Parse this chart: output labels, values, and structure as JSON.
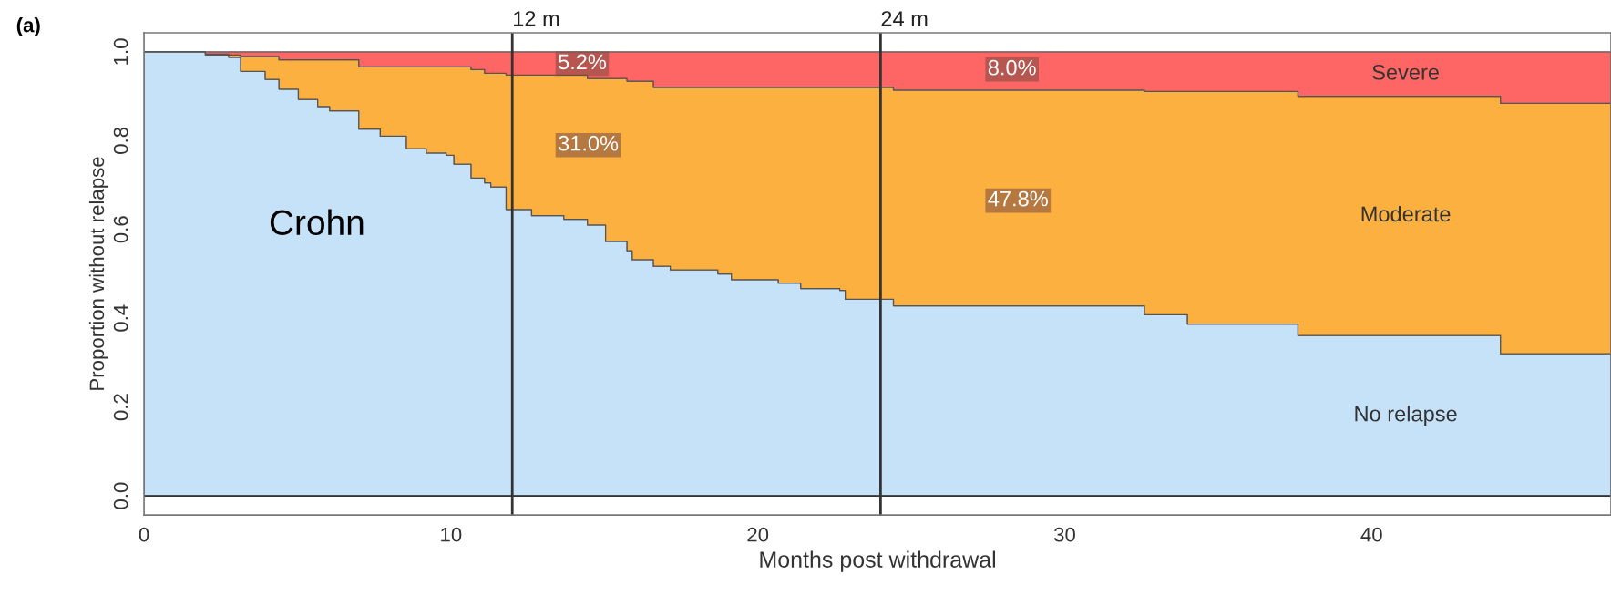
{
  "chart_data": {
    "type": "area",
    "stacked": true,
    "line_style": "solid",
    "xlabel": "Months post withdrawal",
    "ylabel": "Proportion without relapse",
    "x": [
      0,
      2.0,
      2.76,
      3.15,
      3.95,
      4.4,
      5.03,
      5.66,
      6.05,
      7.0,
      7.7,
      8.55,
      9.2,
      9.85,
      10.1,
      10.66,
      11.1,
      11.3,
      11.8,
      12.63,
      13.68,
      14.45,
      15.04,
      15.74,
      15.91,
      16.6,
      17.15,
      18.7,
      19.14,
      20.67,
      21.4,
      22.67,
      22.85,
      24.42,
      32.6,
      34.0,
      37.6,
      44.2,
      47.8
    ],
    "series": [
      {
        "name": "No relapse",
        "color": "#c6e2f8",
        "values": [
          1.0,
          0.993,
          0.988,
          0.956,
          0.938,
          0.916,
          0.893,
          0.877,
          0.867,
          0.826,
          0.81,
          0.782,
          0.772,
          0.767,
          0.747,
          0.716,
          0.705,
          0.696,
          0.645,
          0.631,
          0.623,
          0.61,
          0.573,
          0.552,
          0.532,
          0.517,
          0.509,
          0.5,
          0.487,
          0.479,
          0.467,
          0.463,
          0.443,
          0.428,
          0.408,
          0.387,
          0.361,
          0.32,
          0.32
        ]
      },
      {
        "name": "Moderate",
        "color": "#fbb040",
        "values": [
          0,
          0.002,
          0.005,
          0.034,
          0.052,
          0.066,
          0.089,
          0.105,
          0.115,
          0.14,
          0.156,
          0.184,
          0.194,
          0.199,
          0.219,
          0.244,
          0.247,
          0.256,
          0.303,
          0.317,
          0.325,
          0.33,
          0.367,
          0.382,
          0.402,
          0.403,
          0.411,
          0.42,
          0.433,
          0.441,
          0.453,
          0.457,
          0.477,
          0.486,
          0.503,
          0.524,
          0.539,
          0.564,
          0.564
        ]
      },
      {
        "name": "Severe",
        "color": "#fe6565",
        "values": [
          0,
          0.005,
          0.007,
          0.01,
          0.01,
          0.018,
          0.018,
          0.018,
          0.018,
          0.034,
          0.034,
          0.034,
          0.034,
          0.034,
          0.034,
          0.04,
          0.048,
          0.048,
          0.052,
          0.052,
          0.052,
          0.06,
          0.06,
          0.066,
          0.066,
          0.08,
          0.08,
          0.08,
          0.08,
          0.08,
          0.08,
          0.08,
          0.08,
          0.086,
          0.089,
          0.089,
          0.1,
          0.116,
          0.116
        ]
      }
    ],
    "xlim": [
      0,
      47.8
    ],
    "ylim": [
      -0.043,
      1.043
    ],
    "xticks": [
      0,
      10,
      20,
      30,
      40
    ],
    "yticks": [
      {
        "value": 0,
        "label": "0.0"
      },
      {
        "value": 0.2,
        "label": "0.2"
      },
      {
        "value": 0.4,
        "label": "0.4"
      },
      {
        "value": 0.6,
        "label": "0.6"
      },
      {
        "value": 0.8,
        "label": "0.8"
      },
      {
        "value": 1,
        "label": "1.0"
      }
    ],
    "ref_lines": [
      {
        "axis": "x",
        "value": 12,
        "label": "12 m"
      },
      {
        "axis": "x",
        "value": 24,
        "label": "24 m"
      },
      {
        "axis": "y",
        "value": 0,
        "label": null
      }
    ],
    "annotations": [
      "(a)",
      "Crohn",
      "5.2%",
      "8.0%",
      "31.0%",
      "47.8%"
    ],
    "grid": false,
    "legend": false
  }
}
